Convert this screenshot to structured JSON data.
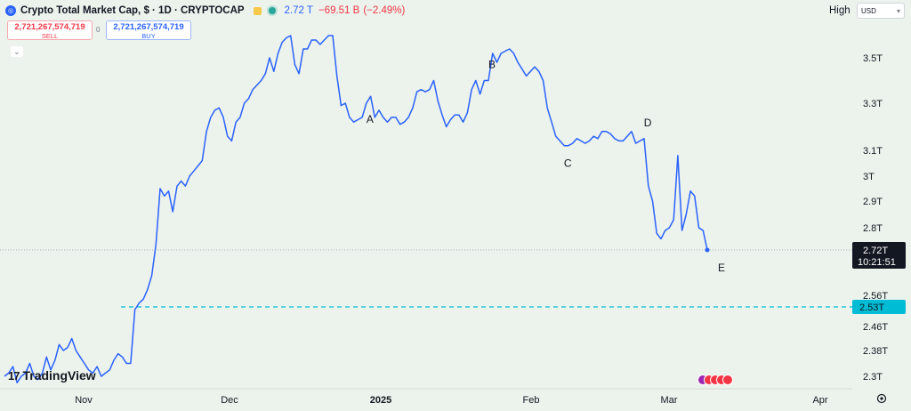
{
  "header": {
    "symbol_icon": "crypto-coin-icon",
    "title": "Crypto Total Market Cap, $ · 1D · CRYPTOCAP",
    "last": "2.72 T",
    "change": "−69.51 B",
    "change_pct": "(−2.49%)"
  },
  "trade": {
    "sell_value": "2,721,267,574,719",
    "sell_label": "SELL",
    "spread": "0",
    "buy_value": "2,721,267,574,719",
    "buy_label": "BUY"
  },
  "toolbar": {
    "high_label": "High",
    "currency": "USD"
  },
  "brand": {
    "logo_mark": "17",
    "logo_text": "TradingView"
  },
  "colors": {
    "line": "#2962ff",
    "accent": "#00bcd4",
    "background": "#ecf2ec"
  },
  "chart_data": {
    "type": "line",
    "series": [
      {
        "values": [
          2.3,
          2.31,
          2.33,
          2.28,
          2.3,
          2.31,
          2.34,
          2.3,
          2.29,
          2.31,
          2.36,
          2.32,
          2.35,
          2.4,
          2.38,
          2.39,
          2.42,
          2.38,
          2.36,
          2.34,
          2.32,
          2.31,
          2.33,
          2.3,
          2.31,
          2.32,
          2.35,
          2.37,
          2.36,
          2.34,
          2.34,
          2.52,
          2.54,
          2.55,
          2.58,
          2.63,
          2.74,
          2.95,
          2.92,
          2.94,
          2.86,
          2.96,
          2.98,
          2.96,
          3.0,
          3.02,
          3.04,
          3.06,
          3.18,
          3.24,
          3.27,
          3.28,
          3.24,
          3.16,
          3.14,
          3.22,
          3.24,
          3.3,
          3.32,
          3.36,
          3.38,
          3.4,
          3.43,
          3.5,
          3.44,
          3.52,
          3.57,
          3.59,
          3.6,
          3.47,
          3.43,
          3.54,
          3.54,
          3.58,
          3.58,
          3.56,
          3.58,
          3.6,
          3.6,
          3.42,
          3.29,
          3.3,
          3.24,
          3.22,
          3.23,
          3.24,
          3.3,
          3.33,
          3.24,
          3.27,
          3.24,
          3.22,
          3.24,
          3.24,
          3.21,
          3.22,
          3.24,
          3.28,
          3.35,
          3.36,
          3.35,
          3.36,
          3.4,
          3.31,
          3.25,
          3.2,
          3.23,
          3.25,
          3.25,
          3.22,
          3.26,
          3.36,
          3.4,
          3.34,
          3.4,
          3.4,
          3.52,
          3.48,
          3.52,
          3.53,
          3.54,
          3.52,
          3.48,
          3.45,
          3.42,
          3.44,
          3.46,
          3.44,
          3.4,
          3.28,
          3.22,
          3.16,
          3.14,
          3.12,
          3.12,
          3.13,
          3.15,
          3.14,
          3.13,
          3.14,
          3.16,
          3.15,
          3.18,
          3.18,
          3.17,
          3.15,
          3.14,
          3.14,
          3.16,
          3.18,
          3.13,
          3.14,
          3.15,
          2.96,
          2.9,
          2.78,
          2.76,
          2.79,
          2.8,
          2.83,
          3.08,
          2.79,
          2.85,
          2.94,
          2.92,
          2.8,
          2.79,
          2.72
        ]
      }
    ],
    "x_labels": [
      "Nov",
      "Dec",
      "2025",
      "Feb",
      "Mar",
      "Apr"
    ],
    "y_ticks": [
      "3.5T",
      "3.3T",
      "3.1T",
      "3T",
      "2.9T",
      "2.8T",
      "2.56T",
      "2.46T",
      "2.38T",
      "2.3T"
    ],
    "price_tag": "2.72T",
    "countdown": "10:21:51",
    "level_tag": "2.53T",
    "level_value": 2.53,
    "wave_labels": [
      "A",
      "B",
      "C",
      "D",
      "E"
    ]
  }
}
